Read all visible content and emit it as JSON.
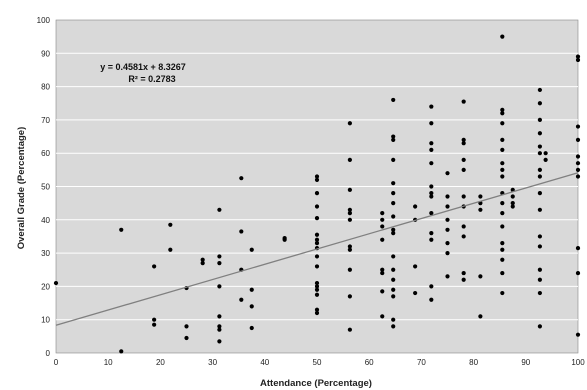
{
  "chart_data": {
    "type": "scatter",
    "xlabel": "Attendance (Percentage)",
    "ylabel": "Overall Grade (Percentage)",
    "xlim": [
      0,
      100
    ],
    "ylim": [
      0,
      100
    ],
    "x_ticks": [
      "0",
      "10",
      "20",
      "30",
      "40",
      "50",
      "60",
      "70",
      "80",
      "90",
      "100"
    ],
    "y_ticks": [
      "0",
      "10",
      "20",
      "30",
      "40",
      "50",
      "60",
      "70",
      "80",
      "90",
      "100"
    ],
    "grid": true,
    "legend": "none",
    "colors": {
      "plot_bg": "#d9d9d9",
      "marker": "#000000",
      "trendline": "#808080",
      "grid": "#ffffff"
    },
    "trendline": {
      "slope": 0.4581,
      "intercept": 8.3267,
      "equation": "y = 0.4581x + 8.3267",
      "r2": "R² = 0.2783"
    },
    "series": [
      {
        "points": [
          [
            0,
            21
          ],
          [
            12.5,
            37
          ],
          [
            12.5,
            0.5
          ],
          [
            18.8,
            26
          ],
          [
            18.8,
            10
          ],
          [
            18.8,
            8.5
          ],
          [
            21.9,
            38.5
          ],
          [
            21.9,
            31
          ],
          [
            25,
            19.5
          ],
          [
            25,
            8
          ],
          [
            25,
            4.5
          ],
          [
            28.1,
            28
          ],
          [
            28.1,
            27
          ],
          [
            31.3,
            43
          ],
          [
            31.3,
            29
          ],
          [
            31.3,
            27
          ],
          [
            31.3,
            20
          ],
          [
            31.3,
            11
          ],
          [
            31.3,
            8
          ],
          [
            31.3,
            7
          ],
          [
            31.3,
            3.5
          ],
          [
            35.5,
            52.5
          ],
          [
            35.5,
            36.5
          ],
          [
            35.5,
            25
          ],
          [
            35.5,
            16
          ],
          [
            37.5,
            31
          ],
          [
            37.5,
            19
          ],
          [
            37.5,
            14
          ],
          [
            37.5,
            7.5
          ],
          [
            43.8,
            34.5
          ],
          [
            43.8,
            34
          ],
          [
            50,
            53
          ],
          [
            50,
            52
          ],
          [
            50,
            48
          ],
          [
            50,
            44
          ],
          [
            50,
            40.5
          ],
          [
            50,
            35.5
          ],
          [
            50,
            34
          ],
          [
            50,
            33
          ],
          [
            50,
            31.5
          ],
          [
            50,
            29
          ],
          [
            50,
            26
          ],
          [
            50,
            21
          ],
          [
            50,
            20
          ],
          [
            50,
            19
          ],
          [
            50,
            17.5
          ],
          [
            50,
            13
          ],
          [
            50,
            12
          ],
          [
            56.3,
            69
          ],
          [
            56.3,
            58
          ],
          [
            56.3,
            49
          ],
          [
            56.3,
            43
          ],
          [
            56.3,
            42
          ],
          [
            56.3,
            40
          ],
          [
            56.3,
            32
          ],
          [
            56.3,
            31
          ],
          [
            56.3,
            25
          ],
          [
            56.3,
            17
          ],
          [
            56.3,
            7
          ],
          [
            62.5,
            42
          ],
          [
            62.5,
            40
          ],
          [
            62.5,
            38
          ],
          [
            62.5,
            34
          ],
          [
            62.5,
            25
          ],
          [
            62.5,
            24
          ],
          [
            62.5,
            18.5
          ],
          [
            62.5,
            11
          ],
          [
            64.6,
            76
          ],
          [
            64.6,
            65
          ],
          [
            64.6,
            64
          ],
          [
            64.6,
            58
          ],
          [
            64.6,
            51
          ],
          [
            64.6,
            48
          ],
          [
            64.6,
            45
          ],
          [
            64.6,
            41
          ],
          [
            64.6,
            37
          ],
          [
            64.6,
            36
          ],
          [
            64.6,
            29
          ],
          [
            64.6,
            25
          ],
          [
            64.6,
            22
          ],
          [
            64.6,
            19
          ],
          [
            64.6,
            17
          ],
          [
            64.6,
            10
          ],
          [
            64.6,
            8
          ],
          [
            68.8,
            44
          ],
          [
            68.8,
            40
          ],
          [
            68.8,
            26
          ],
          [
            68.8,
            18
          ],
          [
            71.9,
            74
          ],
          [
            71.9,
            69
          ],
          [
            71.9,
            63
          ],
          [
            71.9,
            61
          ],
          [
            71.9,
            57
          ],
          [
            71.9,
            50
          ],
          [
            71.9,
            48
          ],
          [
            71.9,
            47
          ],
          [
            71.9,
            42
          ],
          [
            71.9,
            36
          ],
          [
            71.9,
            34
          ],
          [
            71.9,
            20
          ],
          [
            71.9,
            16
          ],
          [
            75,
            54
          ],
          [
            75,
            47
          ],
          [
            75,
            44
          ],
          [
            75,
            40
          ],
          [
            75,
            37
          ],
          [
            75,
            33
          ],
          [
            75,
            30
          ],
          [
            75,
            23
          ],
          [
            78.1,
            75.5
          ],
          [
            78.1,
            64
          ],
          [
            78.1,
            63
          ],
          [
            78.1,
            58
          ],
          [
            78.1,
            55
          ],
          [
            78.1,
            47
          ],
          [
            78.1,
            44
          ],
          [
            78.1,
            38
          ],
          [
            78.1,
            35
          ],
          [
            78.1,
            24
          ],
          [
            78.1,
            22
          ],
          [
            81.3,
            47
          ],
          [
            81.3,
            45
          ],
          [
            81.3,
            43
          ],
          [
            81.3,
            23
          ],
          [
            81.3,
            11
          ],
          [
            85.5,
            95
          ],
          [
            85.5,
            73
          ],
          [
            85.5,
            72
          ],
          [
            85.5,
            69
          ],
          [
            85.5,
            64
          ],
          [
            85.5,
            61
          ],
          [
            85.5,
            57
          ],
          [
            85.5,
            55
          ],
          [
            85.5,
            53
          ],
          [
            85.5,
            48
          ],
          [
            85.5,
            45
          ],
          [
            85.5,
            42
          ],
          [
            85.5,
            38
          ],
          [
            85.5,
            33
          ],
          [
            85.5,
            31
          ],
          [
            85.5,
            28
          ],
          [
            85.5,
            24
          ],
          [
            85.5,
            18
          ],
          [
            87.5,
            49
          ],
          [
            87.5,
            47
          ],
          [
            87.5,
            45
          ],
          [
            87.5,
            44
          ],
          [
            92.7,
            79
          ],
          [
            92.7,
            75
          ],
          [
            92.7,
            70
          ],
          [
            92.7,
            66
          ],
          [
            92.7,
            62
          ],
          [
            92.7,
            60
          ],
          [
            92.7,
            55
          ],
          [
            92.7,
            53
          ],
          [
            92.7,
            48
          ],
          [
            92.7,
            43
          ],
          [
            92.7,
            35
          ],
          [
            92.7,
            32
          ],
          [
            92.7,
            25
          ],
          [
            92.7,
            22
          ],
          [
            92.7,
            18
          ],
          [
            92.7,
            8
          ],
          [
            93.8,
            60
          ],
          [
            93.8,
            58
          ],
          [
            100,
            89
          ],
          [
            100,
            88
          ],
          [
            100,
            68
          ],
          [
            100,
            64
          ],
          [
            100,
            59
          ],
          [
            100,
            57
          ],
          [
            100,
            55
          ],
          [
            100,
            53
          ],
          [
            100,
            31.5
          ],
          [
            100,
            24
          ],
          [
            100,
            5.5
          ]
        ]
      }
    ]
  }
}
